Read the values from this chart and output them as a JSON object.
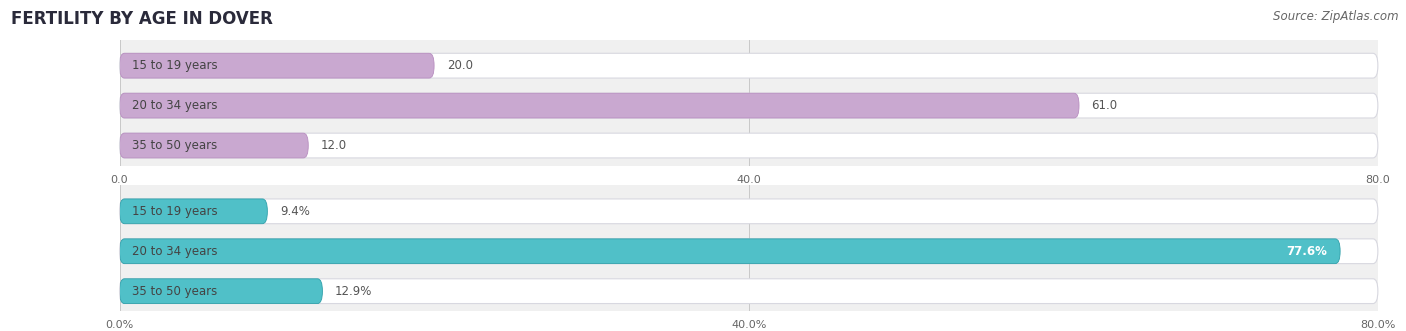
{
  "title": "FERTILITY BY AGE IN DOVER",
  "source": "Source: ZipAtlas.com",
  "top_section": {
    "categories": [
      "15 to 19 years",
      "20 to 34 years",
      "35 to 50 years"
    ],
    "values": [
      20.0,
      61.0,
      12.0
    ],
    "bar_color": "#C9A8D0",
    "bar_dark_color": "#B88EC0",
    "xlim": [
      0,
      80
    ],
    "xticks": [
      0.0,
      40.0,
      80.0
    ]
  },
  "bottom_section": {
    "categories": [
      "15 to 19 years",
      "20 to 34 years",
      "35 to 50 years"
    ],
    "values": [
      9.4,
      77.6,
      12.9
    ],
    "bar_color": "#50C0C8",
    "bar_dark_color": "#30A0AA",
    "xlim": [
      0,
      80
    ],
    "xticks": [
      0.0,
      40.0,
      80.0
    ]
  },
  "background_color": "#ffffff",
  "panel_bg_color": "#f0f0f0",
  "bar_row_bg": "#e8e8ec",
  "title_fontsize": 12,
  "source_fontsize": 8.5,
  "label_fontsize": 8.5,
  "value_fontsize": 8.5,
  "tick_fontsize": 8
}
